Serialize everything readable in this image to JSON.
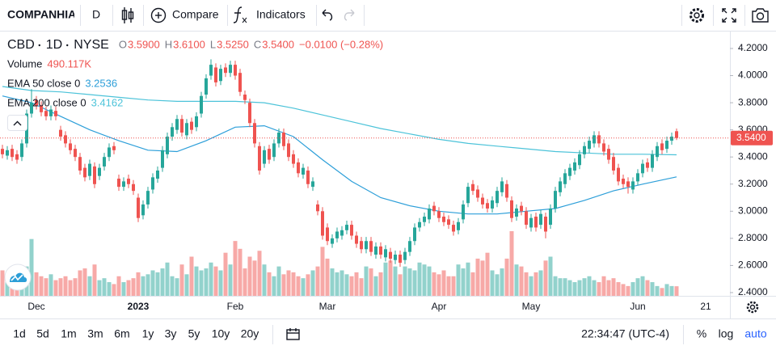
{
  "toolbar": {
    "symbol": "COMPANHIA",
    "interval": "D",
    "compare": "Compare",
    "indicators": "Indicators"
  },
  "chart_data": {
    "type": "candlestick",
    "symbol": "CBD",
    "interval": "1D",
    "exchange": "NYSE",
    "ohlc_labels": [
      {
        "key": "O",
        "value": "3.5900"
      },
      {
        "key": "H",
        "value": "3.6100"
      },
      {
        "key": "L",
        "value": "3.5250"
      },
      {
        "key": "C",
        "value": "3.5400"
      }
    ],
    "change": "−0.0100 (−0.28%)",
    "volume_name": "Volume",
    "volume_label": "490.117K",
    "open": [
      3.46,
      3.41,
      3.46,
      3.42,
      3.4,
      3.5,
      3.72,
      3.82,
      3.78,
      3.74,
      3.7,
      3.74,
      3.6,
      3.56,
      3.5,
      3.46,
      3.4,
      3.32,
      3.26,
      3.33,
      3.26,
      3.33,
      3.4,
      3.48,
      3.24,
      3.18,
      3.24,
      3.2,
      3.1,
      2.97,
      3.05,
      3.16,
      3.24,
      3.32,
      3.42,
      3.55,
      3.6,
      3.68,
      3.56,
      3.66,
      3.62,
      3.72,
      3.86,
      4.0,
      4.06,
      3.96,
      4.06,
      4.02,
      4.08,
      4.02,
      3.86,
      3.8,
      3.65,
      3.48,
      3.35,
      3.46,
      3.4,
      3.5,
      3.58,
      3.5,
      3.42,
      3.36,
      3.27,
      3.3,
      3.18,
      3.05,
      3.0,
      2.88,
      2.76,
      2.8,
      2.82,
      2.86,
      2.9,
      2.82,
      2.78,
      2.72,
      2.78,
      2.68,
      2.74,
      2.66,
      2.7,
      2.64,
      2.68,
      2.64,
      2.7,
      2.78,
      2.88,
      2.92,
      2.94,
      3.04,
      3.0,
      2.96,
      2.94,
      2.9,
      2.86,
      2.94,
      3.06,
      3.2,
      3.16,
      3.1,
      3.06,
      3.02,
      3.06,
      3.14,
      3.2,
      3.08,
      2.96,
      3.04,
      3.0,
      2.88,
      2.96,
      2.9,
      2.96,
      2.9,
      3.02,
      3.14,
      3.2,
      3.26,
      3.3,
      3.34,
      3.42,
      3.46,
      3.5,
      3.56,
      3.5,
      3.46,
      3.4,
      3.32,
      3.24,
      3.22,
      3.16,
      3.22,
      3.28,
      3.36,
      3.32,
      3.4,
      3.5,
      3.46,
      3.52,
      3.59
    ],
    "high": [
      3.49,
      3.48,
      3.49,
      3.45,
      3.53,
      3.75,
      3.9,
      3.85,
      3.81,
      3.77,
      3.78,
      3.77,
      3.63,
      3.59,
      3.53,
      3.49,
      3.43,
      3.35,
      3.38,
      3.36,
      3.35,
      3.43,
      3.5,
      3.51,
      3.27,
      3.25,
      3.27,
      3.23,
      3.13,
      3.08,
      3.18,
      3.28,
      3.33,
      3.48,
      3.58,
      3.65,
      3.71,
      3.71,
      3.68,
      3.69,
      3.73,
      3.88,
      4.01,
      4.12,
      4.09,
      4.08,
      4.09,
      4.11,
      4.11,
      4.05,
      3.89,
      3.83,
      3.68,
      3.51,
      3.48,
      3.49,
      3.53,
      3.61,
      3.61,
      3.53,
      3.45,
      3.39,
      3.35,
      3.33,
      3.25,
      3.08,
      3.03,
      2.91,
      2.83,
      2.88,
      2.89,
      2.93,
      2.93,
      2.85,
      2.81,
      2.81,
      2.81,
      2.77,
      2.77,
      2.75,
      2.73,
      2.71,
      2.71,
      2.73,
      2.81,
      2.91,
      2.95,
      2.99,
      3.05,
      3.07,
      3.03,
      2.99,
      2.97,
      2.93,
      2.95,
      3.08,
      3.21,
      3.23,
      3.19,
      3.13,
      3.09,
      3.11,
      3.18,
      3.25,
      3.23,
      3.11,
      3.05,
      3.07,
      3.03,
      2.98,
      2.99,
      3.01,
      2.99,
      3.05,
      3.18,
      3.25,
      3.31,
      3.35,
      3.39,
      3.45,
      3.51,
      3.55,
      3.59,
      3.59,
      3.53,
      3.49,
      3.43,
      3.35,
      3.27,
      3.25,
      3.25,
      3.31,
      3.38,
      3.39,
      3.45,
      3.51,
      3.53,
      3.55,
      3.58,
      3.61
    ],
    "low": [
      3.39,
      3.38,
      3.37,
      3.35,
      3.37,
      3.47,
      3.69,
      3.75,
      3.7,
      3.67,
      3.67,
      3.67,
      3.52,
      3.47,
      3.42,
      3.37,
      3.27,
      3.22,
      3.23,
      3.17,
      3.23,
      3.3,
      3.37,
      3.42,
      3.15,
      3.15,
      3.17,
      3.12,
      2.92,
      2.94,
      3.02,
      3.13,
      3.21,
      3.29,
      3.39,
      3.52,
      3.57,
      3.55,
      3.53,
      3.57,
      3.59,
      3.69,
      3.83,
      3.97,
      3.92,
      3.93,
      3.99,
      3.99,
      3.97,
      3.85,
      3.79,
      3.62,
      3.47,
      3.27,
      3.32,
      3.35,
      3.37,
      3.47,
      3.45,
      3.37,
      3.32,
      3.25,
      3.24,
      3.17,
      3.15,
      2.97,
      2.79,
      2.75,
      2.73,
      2.77,
      2.79,
      2.83,
      2.79,
      2.73,
      2.69,
      2.69,
      2.67,
      2.65,
      2.65,
      2.63,
      2.62,
      2.61,
      2.59,
      2.61,
      2.67,
      2.75,
      2.85,
      2.89,
      2.91,
      2.97,
      2.92,
      2.89,
      2.87,
      2.82,
      2.83,
      2.91,
      3.03,
      3.12,
      3.07,
      3.02,
      2.99,
      2.99,
      3.03,
      3.11,
      3.07,
      2.92,
      2.93,
      2.97,
      2.87,
      2.85,
      2.85,
      2.87,
      2.8,
      2.87,
      2.99,
      3.11,
      3.17,
      3.23,
      3.27,
      3.31,
      3.39,
      3.43,
      3.47,
      3.47,
      3.41,
      3.35,
      3.27,
      3.19,
      3.17,
      3.13,
      3.13,
      3.19,
      3.25,
      3.29,
      3.29,
      3.37,
      3.42,
      3.43,
      3.49,
      3.525
    ],
    "close": [
      3.42,
      3.45,
      3.4,
      3.38,
      3.5,
      3.72,
      3.8,
      3.78,
      3.73,
      3.7,
      3.75,
      3.7,
      3.55,
      3.5,
      3.45,
      3.4,
      3.3,
      3.25,
      3.35,
      3.2,
      3.32,
      3.4,
      3.47,
      3.45,
      3.18,
      3.22,
      3.2,
      3.15,
      2.95,
      3.05,
      3.15,
      3.25,
      3.3,
      3.45,
      3.55,
      3.62,
      3.68,
      3.58,
      3.65,
      3.6,
      3.7,
      3.85,
      3.98,
      4.08,
      3.95,
      4.05,
      4.02,
      4.08,
      4.0,
      3.88,
      3.82,
      3.65,
      3.5,
      3.3,
      3.45,
      3.38,
      3.5,
      3.58,
      3.48,
      3.4,
      3.35,
      3.28,
      3.32,
      3.2,
      3.22,
      3.0,
      2.82,
      2.78,
      2.8,
      2.85,
      2.86,
      2.9,
      2.82,
      2.76,
      2.72,
      2.78,
      2.7,
      2.74,
      2.68,
      2.72,
      2.65,
      2.68,
      2.62,
      2.7,
      2.78,
      2.88,
      2.92,
      2.96,
      3.02,
      3.0,
      2.95,
      2.92,
      2.9,
      2.85,
      2.92,
      3.05,
      3.18,
      3.15,
      3.1,
      3.05,
      3.02,
      3.08,
      3.15,
      3.22,
      3.1,
      2.95,
      3.02,
      3.0,
      2.9,
      2.95,
      2.88,
      2.98,
      2.85,
      3.02,
      3.15,
      3.22,
      3.28,
      3.32,
      3.36,
      3.42,
      3.48,
      3.52,
      3.56,
      3.5,
      3.44,
      3.38,
      3.3,
      3.22,
      3.2,
      3.18,
      3.22,
      3.28,
      3.35,
      3.32,
      3.42,
      3.48,
      3.45,
      3.52,
      3.55,
      3.54
    ],
    "volume": [
      1300,
      1100,
      900,
      800,
      1000,
      1500,
      2900,
      1200,
      1000,
      900,
      1100,
      800,
      900,
      1000,
      800,
      900,
      1300,
      1400,
      1000,
      1600,
      800,
      900,
      700,
      600,
      1000,
      700,
      800,
      900,
      1200,
      1000,
      1100,
      1300,
      1200,
      1400,
      1700,
      1000,
      900,
      1600,
      1100,
      2000,
      1500,
      1300,
      1400,
      1700,
      1500,
      1300,
      2200,
      1600,
      2800,
      2400,
      1400,
      2000,
      1800,
      2300,
      1600,
      1200,
      1000,
      1500,
      1100,
      1300,
      1200,
      1000,
      900,
      1100,
      1300,
      1500,
      2500,
      1900,
      1400,
      1200,
      1300,
      1100,
      1000,
      1200,
      900,
      1500,
      1400,
      1000,
      1200,
      1700,
      1800,
      1500,
      1100,
      1500,
      1400,
      1300,
      1700,
      1600,
      1500,
      1200,
      1100,
      1300,
      1000,
      1000,
      1600,
      1400,
      1700,
      1200,
      1900,
      1800,
      2200,
      1300,
      1100,
      1400,
      1900,
      3300,
      1600,
      1500,
      1200,
      1000,
      1200,
      1300,
      1800,
      2000,
      1000,
      900,
      900,
      800,
      700,
      800,
      900,
      1000,
      800,
      700,
      1000,
      800,
      900,
      700,
      600,
      500,
      700,
      900,
      1000,
      800,
      700,
      500,
      400,
      600,
      500,
      490.117
    ],
    "up_color": "#26a69a",
    "down_color": "#ef5350",
    "series": [
      {
        "name": "EMA 50 close 0",
        "value_label": "3.2536",
        "color": "#2d9fd9",
        "x": [
          0,
          6,
          12,
          18,
          24,
          30,
          36,
          42,
          48,
          54,
          60,
          66,
          72,
          78,
          84,
          90,
          96,
          102,
          108,
          114,
          120,
          126,
          132,
          139
        ],
        "values": [
          3.85,
          3.8,
          3.7,
          3.6,
          3.52,
          3.45,
          3.44,
          3.52,
          3.62,
          3.63,
          3.55,
          3.38,
          3.22,
          3.1,
          3.04,
          3.0,
          2.98,
          2.98,
          3.0,
          3.02,
          3.08,
          3.15,
          3.2,
          3.2536
        ]
      },
      {
        "name": "EMA 200 close 0",
        "value_label": "3.4162",
        "color": "#4cc3d9",
        "x": [
          0,
          6,
          12,
          18,
          24,
          30,
          36,
          42,
          48,
          54,
          60,
          66,
          72,
          78,
          84,
          90,
          96,
          102,
          108,
          114,
          120,
          126,
          132,
          139
        ],
        "values": [
          3.92,
          3.89,
          3.88,
          3.86,
          3.84,
          3.82,
          3.81,
          3.81,
          3.81,
          3.8,
          3.76,
          3.71,
          3.66,
          3.61,
          3.57,
          3.53,
          3.5,
          3.48,
          3.46,
          3.44,
          3.43,
          3.42,
          3.42,
          3.4162
        ]
      }
    ],
    "ylim": [
      2.376,
      4.331
    ],
    "yticks": [
      {
        "value": 2.4,
        "label": "2.4000"
      },
      {
        "value": 2.6,
        "label": "2.6000"
      },
      {
        "value": 2.8,
        "label": "2.8000"
      },
      {
        "value": 3.0,
        "label": "3.0000"
      },
      {
        "value": 3.2,
        "label": "3.2000"
      },
      {
        "value": 3.4,
        "label": "3.4000"
      },
      {
        "value": 3.6,
        "label": "3.6000"
      },
      {
        "value": 3.8,
        "label": "3.8000"
      },
      {
        "value": 4.0,
        "label": "4.0000"
      },
      {
        "value": 4.2,
        "label": "4.2000"
      }
    ],
    "xlim": [
      -0.5,
      150
    ],
    "xticks": [
      {
        "value": 7,
        "label": "Dec"
      },
      {
        "value": 28,
        "label": "2023"
      },
      {
        "value": 48,
        "label": "Feb"
      },
      {
        "value": 67,
        "label": "Mar"
      },
      {
        "value": 90,
        "label": "Apr"
      },
      {
        "value": 109,
        "label": "May"
      },
      {
        "value": 131,
        "label": "Jun"
      },
      {
        "value": 145,
        "label": "21"
      }
    ],
    "last_price_label": "3.5400"
  },
  "bottom_bar": {
    "ranges": [
      "1d",
      "5d",
      "1m",
      "3m",
      "6m",
      "1y",
      "3y",
      "5y",
      "10y",
      "20y"
    ],
    "time": "22:34:47 (UTC-4)",
    "percent": "%",
    "log": "log",
    "auto": "auto"
  }
}
